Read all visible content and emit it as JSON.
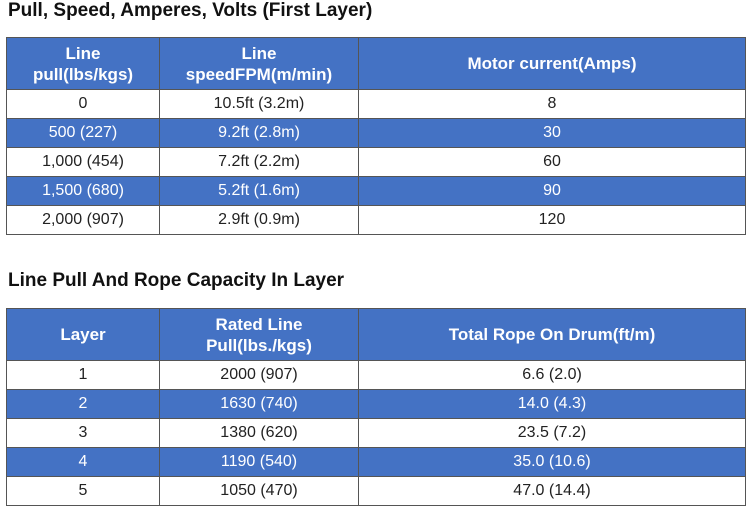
{
  "sections": [
    {
      "title": "Pull, Speed, Amperes, Volts (First Layer)",
      "table": {
        "header": [
          [
            "Line",
            "pull(lbs/kgs)"
          ],
          [
            "Line",
            "speedFPM(m/min)"
          ],
          [
            "Motor current(Amps)"
          ]
        ],
        "rows": [
          [
            "0",
            "10.5ft (3.2m)",
            "8"
          ],
          [
            "500 (227)",
            "9.2ft (2.8m)",
            "30"
          ],
          [
            "1,000 (454)",
            "7.2ft (2.2m)",
            "60"
          ],
          [
            "1,500 (680)",
            "5.2ft (1.6m)",
            "90"
          ],
          [
            "2,000 (907)",
            "2.9ft (0.9m)",
            "120"
          ]
        ]
      }
    },
    {
      "title": "Line Pull And Rope Capacity In Layer",
      "table": {
        "header": [
          [
            "Layer"
          ],
          [
            "Rated Line",
            "Pull(lbs./kgs)"
          ],
          [
            "Total Rope On Drum(ft/m)"
          ]
        ],
        "rows": [
          [
            "1",
            "2000 (907)",
            "6.6 (2.0)"
          ],
          [
            "2",
            "1630 (740)",
            "14.0 (4.3)"
          ],
          [
            "3",
            "1380 (620)",
            "23.5 (7.2)"
          ],
          [
            "4",
            "1190 (540)",
            "35.0 (10.6)"
          ],
          [
            "5",
            "1050 (470)",
            "47.0 (14.4)"
          ]
        ]
      }
    }
  ]
}
